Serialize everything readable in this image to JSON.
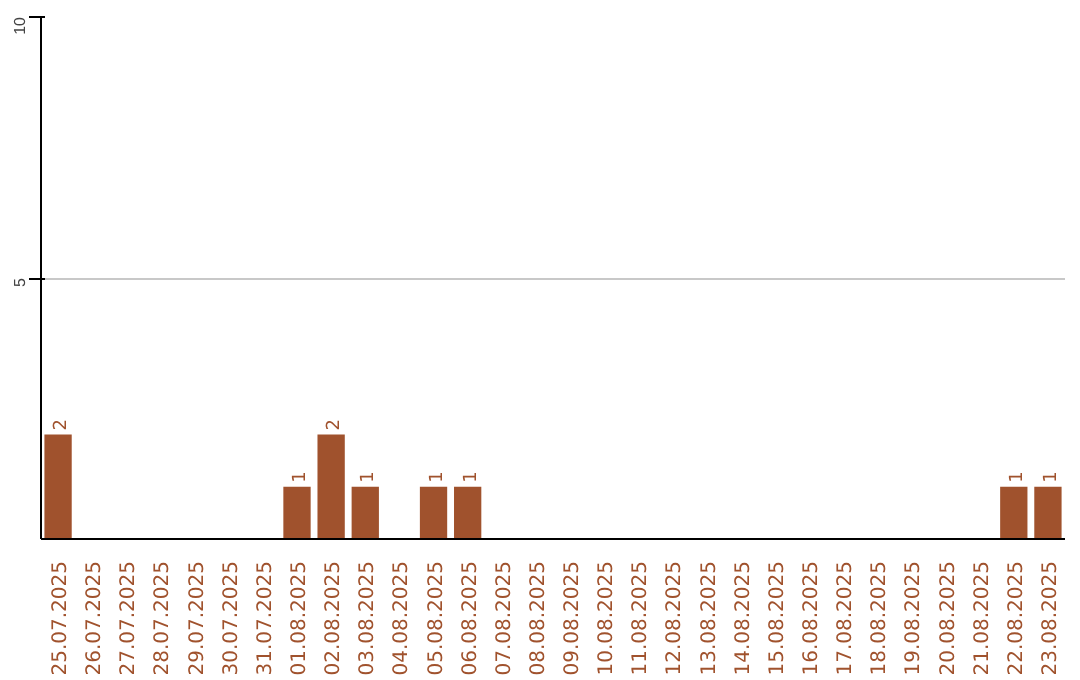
{
  "chart_data": {
    "type": "bar",
    "categories": [
      "25.07.2025",
      "26.07.2025",
      "27.07.2025",
      "28.07.2025",
      "29.07.2025",
      "30.07.2025",
      "31.07.2025",
      "01.08.2025",
      "02.08.2025",
      "03.08.2025",
      "04.08.2025",
      "05.08.2025",
      "06.08.2025",
      "07.08.2025",
      "08.08.2025",
      "09.08.2025",
      "10.08.2025",
      "11.08.2025",
      "12.08.2025",
      "13.08.2025",
      "14.08.2025",
      "15.08.2025",
      "16.08.2025",
      "17.08.2025",
      "18.08.2025",
      "19.08.2025",
      "20.08.2025",
      "21.08.2025",
      "22.08.2025",
      "23.08.2025"
    ],
    "values": [
      2,
      0,
      0,
      0,
      0,
      0,
      0,
      1,
      2,
      1,
      0,
      1,
      1,
      0,
      0,
      0,
      0,
      0,
      0,
      0,
      0,
      0,
      0,
      0,
      0,
      0,
      0,
      0,
      1,
      1
    ],
    "value_labels": [
      "2",
      null,
      null,
      null,
      null,
      null,
      null,
      "1",
      "2",
      "1",
      null,
      "1",
      "1",
      null,
      null,
      null,
      null,
      null,
      null,
      null,
      null,
      null,
      null,
      null,
      null,
      null,
      null,
      null,
      "1",
      "1"
    ],
    "color": "#a0522d",
    "ylim": [
      0,
      10
    ],
    "yticks": [
      5,
      10
    ],
    "grid": "y"
  }
}
